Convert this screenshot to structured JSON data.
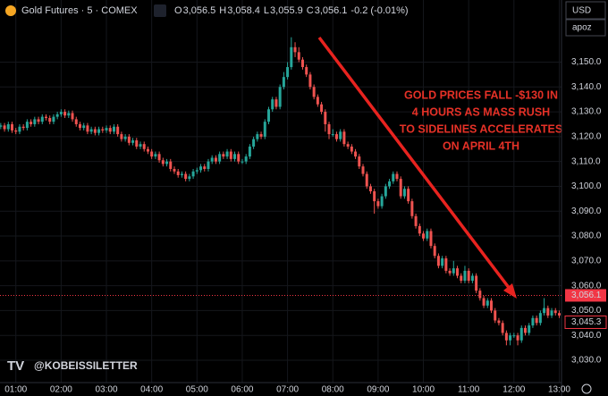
{
  "chart_data": {
    "type": "candlestick",
    "symbol": "Gold Futures · 5 · COMEX",
    "header": [
      {
        "key": "O",
        "value": "3,056.5"
      },
      {
        "key": "H",
        "value": "3,058.4"
      },
      {
        "key": "L",
        "value": "3,055.9"
      },
      {
        "key": "C",
        "value": "3,056.1"
      }
    ],
    "change": "-0.2 (-0.01%)",
    "currency": "USD",
    "unit": "apoz",
    "annotation": [
      "GOLD PRICES FALL -$130 IN",
      "4 HOURS AS MASS RUSH",
      "TO SIDELINES ACCELERATES",
      "ON APRIL 4TH"
    ],
    "watermark": "@KOBEISSILETTER",
    "up_color": "#26a69a",
    "down_color": "#ef5350",
    "grid": true,
    "xlim": [
      39,
      783
    ],
    "xticks": [
      {
        "value": 60,
        "label": "01:00"
      },
      {
        "value": 120,
        "label": "02:00"
      },
      {
        "value": 180,
        "label": "03:00"
      },
      {
        "value": 240,
        "label": "04:00"
      },
      {
        "value": 300,
        "label": "05:00"
      },
      {
        "value": 360,
        "label": "06:00"
      },
      {
        "value": 420,
        "label": "07:00"
      },
      {
        "value": 480,
        "label": "08:00"
      },
      {
        "value": 540,
        "label": "09:00"
      },
      {
        "value": 600,
        "label": "10:00"
      },
      {
        "value": 660,
        "label": "11:00"
      },
      {
        "value": 720,
        "label": "12:00"
      },
      {
        "value": 780,
        "label": "13:00"
      }
    ],
    "ylim": [
      3021,
      3175
    ],
    "yticks": [
      {
        "value": 3030,
        "label": "3,030.0"
      },
      {
        "value": 3040,
        "label": "3,040.0"
      },
      {
        "value": 3050,
        "label": "3,050.0"
      },
      {
        "value": 3060,
        "label": "3,060.0"
      },
      {
        "value": 3070,
        "label": "3,070.0"
      },
      {
        "value": 3080,
        "label": "3,080.0"
      },
      {
        "value": 3090,
        "label": "3,090.0"
      },
      {
        "value": 3100,
        "label": "3,100.0"
      },
      {
        "value": 3110,
        "label": "3,110.0"
      },
      {
        "value": 3120,
        "label": "3,120.0"
      },
      {
        "value": 3130,
        "label": "3,130.0"
      },
      {
        "value": 3140,
        "label": "3,140.0"
      },
      {
        "value": 3150,
        "label": "3,150.0"
      }
    ],
    "price_lines": [
      {
        "value": 3056.1,
        "label": "3,056.1",
        "color": "#f23645"
      },
      {
        "value": 3045.3,
        "label": "3,045.3",
        "color": "#f23645"
      }
    ],
    "x": [
      40,
      45,
      50,
      55,
      60,
      65,
      70,
      75,
      80,
      85,
      90,
      95,
      100,
      105,
      110,
      115,
      120,
      125,
      130,
      135,
      140,
      145,
      150,
      155,
      160,
      165,
      170,
      175,
      180,
      185,
      190,
      195,
      200,
      205,
      210,
      215,
      220,
      225,
      230,
      235,
      240,
      245,
      250,
      255,
      260,
      265,
      270,
      275,
      280,
      285,
      290,
      295,
      300,
      305,
      310,
      315,
      320,
      325,
      330,
      335,
      340,
      345,
      350,
      355,
      360,
      365,
      370,
      375,
      380,
      385,
      390,
      395,
      400,
      405,
      410,
      415,
      420,
      425,
      430,
      435,
      440,
      445,
      450,
      455,
      460,
      465,
      470,
      475,
      480,
      485,
      490,
      495,
      500,
      505,
      510,
      515,
      520,
      525,
      530,
      535,
      540,
      545,
      550,
      555,
      560,
      565,
      570,
      575,
      580,
      585,
      590,
      595,
      600,
      605,
      610,
      615,
      620,
      625,
      630,
      635,
      640,
      645,
      650,
      655,
      660,
      665,
      670,
      675,
      680,
      685,
      690,
      695,
      700,
      705,
      710,
      715,
      720,
      725,
      730,
      735,
      740,
      745,
      750,
      755,
      760,
      765,
      770,
      775,
      780
    ],
    "open": [
      3124,
      3124.5,
      3123,
      3125,
      3122.5,
      3122,
      3124,
      3123.5,
      3126,
      3125,
      3127,
      3126,
      3128,
      3127.5,
      3126,
      3128,
      3129,
      3130,
      3128.5,
      3129.5,
      3127,
      3125,
      3123.5,
      3124.5,
      3122,
      3123,
      3121.5,
      3123,
      3122.5,
      3123.5,
      3122,
      3124,
      3121,
      3119,
      3120,
      3117.5,
      3118.5,
      3116,
      3117,
      3115,
      3114,
      3112,
      3113,
      3110.5,
      3109,
      3110,
      3107,
      3106,
      3104.5,
      3105,
      3103,
      3104,
      3106,
      3106.5,
      3108,
      3107,
      3110,
      3111.5,
      3110,
      3113,
      3112,
      3114,
      3111,
      3113,
      3110,
      3110,
      3112,
      3116,
      3119,
      3121,
      3120,
      3126,
      3131,
      3135,
      3132,
      3140,
      3144,
      3148,
      3156,
      3154,
      3151,
      3148,
      3145,
      3140,
      3136,
      3133,
      3130,
      3125,
      3121,
      3121,
      3119,
      3122,
      3117,
      3116,
      3114,
      3112,
      3108,
      3105,
      3100,
      3098,
      3094,
      3092,
      3096,
      3100,
      3102,
      3105,
      3103,
      3096,
      3099,
      3094,
      3088,
      3084,
      3081,
      3079,
      3082,
      3076,
      3072,
      3068,
      3071,
      3066,
      3065,
      3067,
      3064,
      3062,
      3066,
      3062,
      3064,
      3058,
      3055,
      3052,
      3054,
      3050,
      3046,
      3045,
      3041,
      3038,
      3040,
      3040,
      3038,
      3043,
      3041,
      3044,
      3047,
      3045,
      3049,
      3051,
      3048,
      3050,
      3049
    ],
    "high": [
      3125.5,
      3125.5,
      3126,
      3126,
      3123.5,
      3125,
      3125,
      3127,
      3127,
      3128,
      3128,
      3129,
      3129,
      3128.5,
      3129,
      3130,
      3131,
      3131,
      3130.5,
      3130.5,
      3128,
      3126,
      3125.5,
      3125.5,
      3124,
      3124,
      3124,
      3124,
      3124.5,
      3124.5,
      3125,
      3125,
      3122,
      3121,
      3121,
      3119.5,
      3119.5,
      3118,
      3118,
      3116,
      3115,
      3114,
      3114,
      3111.5,
      3111,
      3111,
      3108,
      3107,
      3106,
      3106,
      3105,
      3107,
      3107.5,
      3109,
      3109,
      3111,
      3112.5,
      3112.5,
      3114,
      3114,
      3115,
      3115,
      3114,
      3114,
      3111,
      3113,
      3117,
      3120,
      3122,
      3122,
      3127,
      3132,
      3136,
      3136,
      3141,
      3146,
      3150,
      3160,
      3158,
      3156,
      3152,
      3149,
      3146,
      3141,
      3137,
      3134,
      3131,
      3126,
      3123,
      3122,
      3123,
      3123,
      3118,
      3117,
      3115,
      3113,
      3109,
      3106,
      3101,
      3099,
      3095,
      3097,
      3101,
      3103,
      3106,
      3106,
      3104,
      3100,
      3100,
      3095,
      3089,
      3085,
      3082,
      3083,
      3083,
      3077,
      3073,
      3072,
      3072,
      3067,
      3070,
      3068,
      3065,
      3068,
      3067,
      3065,
      3065,
      3059,
      3056,
      3055,
      3055,
      3051,
      3047,
      3046,
      3042,
      3041,
      3041,
      3041,
      3044,
      3044,
      3045,
      3048,
      3048,
      3050,
      3055,
      3052,
      3051,
      3051,
      3050
    ],
    "low": [
      3123,
      3122,
      3122,
      3121.5,
      3121,
      3121,
      3122.5,
      3122.5,
      3124,
      3124,
      3125,
      3125,
      3126.5,
      3125,
      3125,
      3127,
      3128,
      3127.5,
      3127.5,
      3126,
      3124,
      3122.5,
      3122.5,
      3121,
      3121,
      3120.5,
      3120.5,
      3121.5,
      3121.5,
      3121,
      3121,
      3120,
      3118,
      3118,
      3116.5,
      3116.5,
      3115,
      3115,
      3114,
      3113,
      3111,
      3111,
      3109.5,
      3108,
      3108,
      3106,
      3105,
      3103.5,
      3103.5,
      3102,
      3102,
      3103,
      3105,
      3105.5,
      3106,
      3106,
      3109,
      3109,
      3109,
      3111,
      3111,
      3110,
      3110,
      3109,
      3109,
      3109,
      3111,
      3115,
      3118,
      3119,
      3119,
      3125,
      3130,
      3131,
      3131,
      3139,
      3143,
      3147,
      3152,
      3150,
      3147,
      3144,
      3139,
      3135,
      3132,
      3129,
      3122,
      3119,
      3120,
      3118,
      3118,
      3116,
      3115,
      3113,
      3111,
      3107,
      3104,
      3099,
      3097,
      3089,
      3091,
      3091,
      3095,
      3099,
      3101,
      3102,
      3095,
      3095,
      3093,
      3087,
      3083,
      3080,
      3078,
      3078,
      3075,
      3071,
      3067,
      3067,
      3065,
      3064,
      3064,
      3063,
      3061,
      3061,
      3061,
      3061,
      3057,
      3054,
      3051,
      3051,
      3049,
      3045,
      3044,
      3040,
      3036,
      3036,
      3039,
      3036,
      3037,
      3040,
      3040,
      3043,
      3044,
      3044,
      3048,
      3047,
      3047,
      3048,
      3047
    ],
    "close": [
      3124.5,
      3123,
      3125,
      3122.5,
      3122,
      3124,
      3123.5,
      3126,
      3125,
      3127,
      3126,
      3128,
      3127.5,
      3126,
      3128,
      3129,
      3130,
      3128.5,
      3129.5,
      3127,
      3125,
      3123.5,
      3124.5,
      3122,
      3123,
      3121.5,
      3123,
      3122.5,
      3123.5,
      3122,
      3124,
      3121,
      3119,
      3120,
      3117.5,
      3118.5,
      3116,
      3117,
      3115,
      3114,
      3112,
      3113,
      3110.5,
      3109,
      3110,
      3107,
      3106,
      3104.5,
      3105,
      3103,
      3104,
      3106,
      3106.5,
      3108,
      3107,
      3110,
      3111.5,
      3110,
      3113,
      3112,
      3114,
      3111,
      3113,
      3110,
      3110,
      3112,
      3116,
      3119,
      3121,
      3120,
      3126,
      3131,
      3135,
      3132,
      3140,
      3144,
      3148,
      3156,
      3154,
      3151,
      3148,
      3145,
      3140,
      3136,
      3133,
      3130,
      3125,
      3121,
      3121,
      3119,
      3122,
      3117,
      3116,
      3114,
      3112,
      3108,
      3105,
      3100,
      3098,
      3094,
      3092,
      3096,
      3100,
      3102,
      3105,
      3103,
      3096,
      3099,
      3094,
      3088,
      3084,
      3081,
      3079,
      3082,
      3076,
      3072,
      3068,
      3071,
      3066,
      3065,
      3067,
      3064,
      3062,
      3066,
      3062,
      3064,
      3058,
      3055,
      3052,
      3054,
      3050,
      3046,
      3045,
      3041,
      3038,
      3040,
      3040,
      3038,
      3043,
      3041,
      3044,
      3047,
      3045,
      3049,
      3051,
      3048,
      3050,
      3049,
      3048
    ]
  }
}
